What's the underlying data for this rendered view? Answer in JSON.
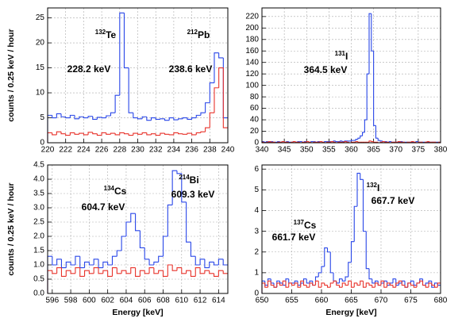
{
  "chart_data": [
    {
      "type": "histogram",
      "ylabel": "counts / 0.25 keV / hour",
      "bins": [
        220,
        220.5,
        221,
        221.5,
        222,
        222.5,
        223,
        223.5,
        224,
        224.5,
        225,
        225.5,
        226,
        226.5,
        227,
        227.5,
        228,
        228.5,
        229,
        229.5,
        230,
        230.5,
        231,
        231.5,
        232,
        232.5,
        233,
        233.5,
        234,
        234.5,
        235,
        235.5,
        236,
        236.5,
        237,
        237.5,
        238,
        238.5,
        239,
        239.5,
        240
      ],
      "series": [
        {
          "color": "#2846e8",
          "values": [
            5.5,
            5.0,
            5.8,
            5.2,
            5.0,
            5.5,
            4.8,
            5.2,
            5.0,
            5.3,
            4.7,
            5.1,
            5.0,
            5.4,
            6.0,
            9.5,
            26,
            15,
            6,
            5.0,
            4.8,
            5.2,
            4.5,
            5.0,
            4.7,
            4.8,
            4.5,
            5.0,
            4.6,
            4.8,
            5.0,
            4.7,
            5.0,
            5.5,
            6.0,
            8.0,
            12,
            18,
            17,
            5.0
          ]
        },
        {
          "color": "#e8322a",
          "values": [
            2.0,
            1.6,
            2.2,
            1.8,
            1.5,
            2.0,
            1.7,
            1.9,
            1.6,
            2.1,
            1.8,
            1.5,
            2.0,
            1.7,
            1.9,
            1.6,
            2.0,
            1.8,
            1.5,
            1.9,
            1.7,
            2.0,
            1.6,
            1.8,
            1.5,
            1.9,
            1.7,
            1.6,
            2.0,
            1.8,
            1.7,
            1.9,
            1.6,
            2.0,
            2.2,
            3.0,
            6.0,
            11,
            15,
            3.0
          ]
        }
      ],
      "xlim": [
        220,
        240
      ],
      "xticks": [
        220,
        222,
        224,
        226,
        228,
        230,
        232,
        234,
        236,
        238,
        240
      ],
      "ylim": [
        0,
        27
      ],
      "yticks": [
        0,
        5,
        10,
        15,
        20,
        25
      ],
      "grid": true,
      "annotations": [
        {
          "mass": "132",
          "element": "Te",
          "energy": "228.2 keV"
        },
        {
          "mass": "212",
          "element": "Pb",
          "energy": "238.6 keV"
        }
      ]
    },
    {
      "type": "histogram",
      "bins": [
        340,
        340.5,
        341,
        341.5,
        342,
        342.5,
        343,
        343.5,
        344,
        344.5,
        345,
        345.5,
        346,
        346.5,
        347,
        347.5,
        348,
        348.5,
        349,
        349.5,
        350,
        350.5,
        351,
        351.5,
        352,
        352.5,
        353,
        353.5,
        354,
        354.5,
        355,
        355.5,
        356,
        356.5,
        357,
        357.5,
        358,
        358.5,
        359,
        359.5,
        360,
        360.5,
        361,
        361.5,
        362,
        362.5,
        363,
        363.5,
        364,
        364.5,
        365,
        365.5,
        366,
        366.5,
        367,
        367.5,
        368,
        368.5,
        369,
        369.5,
        370,
        370.5,
        371,
        371.5,
        372,
        372.5,
        373,
        373.5,
        374,
        374.5,
        375,
        375.5,
        376,
        376.5,
        377,
        377.5,
        378,
        378.5,
        379,
        379.5,
        380
      ],
      "series": [
        {
          "color": "#2846e8",
          "values": [
            2,
            1,
            2,
            1,
            2,
            1,
            1,
            2,
            1,
            2,
            1,
            2,
            1,
            1,
            2,
            1,
            2,
            2,
            1,
            2,
            2,
            1,
            2,
            2,
            1,
            2,
            2,
            1,
            2,
            2,
            2,
            2,
            3,
            2,
            2,
            3,
            2,
            3,
            3,
            3,
            4,
            4,
            6,
            8,
            12,
            18,
            40,
            120,
            225,
            160,
            30,
            8,
            4,
            3,
            2,
            2,
            1,
            2,
            1,
            1,
            1,
            1,
            2,
            1,
            1,
            1,
            1,
            1,
            1,
            2,
            1,
            1,
            1,
            1,
            1,
            1,
            1,
            1,
            1,
            1
          ]
        },
        {
          "color": "#e8322a",
          "values": [
            1,
            0,
            1,
            2,
            1,
            1,
            0,
            1,
            1,
            2,
            1,
            1,
            0,
            1,
            2,
            1,
            1,
            0,
            1,
            1,
            2,
            1,
            0,
            1,
            1,
            1,
            2,
            1,
            0,
            1,
            1,
            2,
            1,
            0,
            1,
            1,
            1,
            2,
            1,
            0,
            1,
            1,
            2,
            1,
            1,
            1,
            1,
            1,
            3,
            2,
            1,
            1,
            0,
            1,
            2,
            1,
            1,
            0,
            1,
            1,
            1,
            2,
            1,
            1,
            0,
            1,
            1,
            2,
            1,
            0,
            1,
            1,
            0,
            1,
            2,
            1,
            1,
            1,
            0,
            1
          ]
        }
      ],
      "xlim": [
        340,
        380
      ],
      "xticks": [
        340,
        345,
        350,
        355,
        360,
        365,
        370,
        375,
        380
      ],
      "ylim": [
        0,
        235
      ],
      "yticks": [
        0,
        20,
        40,
        60,
        80,
        100,
        120,
        140,
        160,
        180,
        200,
        220
      ],
      "grid": true,
      "annotations": [
        {
          "mass": "131",
          "element": "I",
          "energy": "364.5 keV"
        }
      ]
    },
    {
      "type": "histogram",
      "ylabel": "counts / 0.25 keV / hour",
      "xlabel": "Energy [keV]",
      "bins": [
        595.5,
        596,
        596.5,
        597,
        597.5,
        598,
        598.5,
        599,
        599.5,
        600,
        600.5,
        601,
        601.5,
        602,
        602.5,
        603,
        603.5,
        604,
        604.5,
        605,
        605.5,
        606,
        606.5,
        607,
        607.5,
        608,
        608.5,
        609,
        609.5,
        610,
        610.5,
        611,
        611.5,
        612,
        612.5,
        613,
        613.5,
        614,
        614.5,
        615
      ],
      "series": [
        {
          "color": "#2846e8",
          "values": [
            1.3,
            1.0,
            1.2,
            0.9,
            1.1,
            1.0,
            1.3,
            0.9,
            1.1,
            1.0,
            1.2,
            0.9,
            1.1,
            1.0,
            1.3,
            1.5,
            2.0,
            2.5,
            2.8,
            2.2,
            1.6,
            1.2,
            1.0,
            1.1,
            1.3,
            2.0,
            3.1,
            4.3,
            4.2,
            3.2,
            1.8,
            1.3,
            1.0,
            1.2,
            0.9,
            1.1,
            1.0,
            1.2,
            1.0
          ]
        },
        {
          "color": "#e8322a",
          "values": [
            0.8,
            0.7,
            0.9,
            0.6,
            0.8,
            0.7,
            0.9,
            0.6,
            0.8,
            0.7,
            0.9,
            0.7,
            0.8,
            0.6,
            0.9,
            0.7,
            0.8,
            0.7,
            0.9,
            0.6,
            0.8,
            0.7,
            0.9,
            0.7,
            0.8,
            0.6,
            1.0,
            0.8,
            0.9,
            0.7,
            0.8,
            0.6,
            0.9,
            0.7,
            0.8,
            0.7,
            0.6,
            0.8,
            0.7
          ]
        }
      ],
      "xlim": [
        595.5,
        615
      ],
      "xticks": [
        596,
        598,
        600,
        602,
        604,
        606,
        608,
        610,
        612,
        614
      ],
      "ylim": [
        0,
        4.5
      ],
      "yticks": [
        {
          "value": 0,
          "label": "0.0"
        },
        0.5,
        {
          "value": 1,
          "label": "1.0"
        },
        1.5,
        {
          "value": 2,
          "label": "2.0"
        },
        2.5,
        {
          "value": 3,
          "label": "3.0"
        },
        3.5,
        {
          "value": 4,
          "label": "4.0"
        },
        4.5
      ],
      "grid": true,
      "annotations": [
        {
          "mass": "134",
          "element": "Cs",
          "energy": "604.7 keV"
        },
        {
          "mass": "214",
          "element": "Bi",
          "energy": "609.3 keV"
        }
      ]
    },
    {
      "type": "histogram",
      "xlabel": "Energy [keV]",
      "bins": [
        650,
        650.5,
        651,
        651.5,
        652,
        652.5,
        653,
        653.5,
        654,
        654.5,
        655,
        655.5,
        656,
        656.5,
        657,
        657.5,
        658,
        658.5,
        659,
        659.5,
        660,
        660.5,
        661,
        661.5,
        662,
        662.5,
        663,
        663.5,
        664,
        664.5,
        665,
        665.5,
        666,
        666.5,
        667,
        667.5,
        668,
        668.5,
        669,
        669.5,
        670,
        670.5,
        671,
        671.5,
        672,
        672.5,
        673,
        673.5,
        674,
        674.5,
        675,
        675.5,
        676,
        676.5,
        677,
        677.5,
        678,
        678.5,
        679,
        679.5,
        680
      ],
      "series": [
        {
          "color": "#2846e8",
          "values": [
            0.6,
            0.4,
            0.7,
            0.5,
            0.3,
            0.6,
            0.5,
            0.4,
            0.7,
            0.5,
            0.5,
            0.6,
            0.4,
            0.5,
            0.7,
            0.5,
            0.6,
            0.4,
            0.8,
            1.0,
            1.3,
            2.2,
            2.0,
            1.0,
            0.6,
            0.5,
            0.7,
            0.6,
            0.8,
            1.5,
            2.5,
            4.2,
            5.8,
            5.5,
            3.0,
            1.2,
            0.7,
            0.5,
            0.6,
            0.4,
            0.5,
            0.6,
            0.4,
            0.5,
            0.7,
            0.4,
            0.5,
            0.6,
            0.3,
            0.5,
            0.6,
            0.4,
            0.5,
            0.7,
            0.4,
            0.5,
            0.6,
            0.3,
            0.5,
            0.4
          ]
        },
        {
          "color": "#e8322a",
          "values": [
            0.5,
            0.3,
            0.6,
            0.4,
            0.3,
            0.5,
            0.4,
            0.6,
            0.3,
            0.5,
            0.4,
            0.5,
            0.3,
            0.6,
            0.4,
            0.3,
            0.5,
            0.4,
            0.6,
            0.3,
            0.5,
            0.4,
            0.3,
            0.5,
            0.6,
            0.4,
            0.3,
            0.5,
            0.4,
            0.6,
            0.3,
            0.5,
            0.4,
            0.6,
            0.3,
            0.5,
            0.4,
            0.3,
            0.5,
            0.4,
            0.6,
            0.3,
            0.5,
            0.4,
            0.3,
            0.5,
            0.6,
            0.4,
            0.3,
            0.5,
            0.4,
            0.3,
            0.5,
            0.6,
            0.4,
            0.3,
            0.5,
            0.4,
            0.3,
            0.5
          ]
        }
      ],
      "xlim": [
        650,
        680
      ],
      "xticks": [
        650,
        655,
        660,
        665,
        670,
        675,
        680
      ],
      "ylim": [
        0,
        6.2
      ],
      "yticks": [
        0,
        1,
        2,
        3,
        4,
        5,
        6
      ],
      "grid": true,
      "annotations": [
        {
          "mass": "137",
          "element": "Cs",
          "energy": "661.7 keV"
        },
        {
          "mass": "132",
          "element": "I",
          "energy": "667.7 keV"
        }
      ]
    }
  ]
}
